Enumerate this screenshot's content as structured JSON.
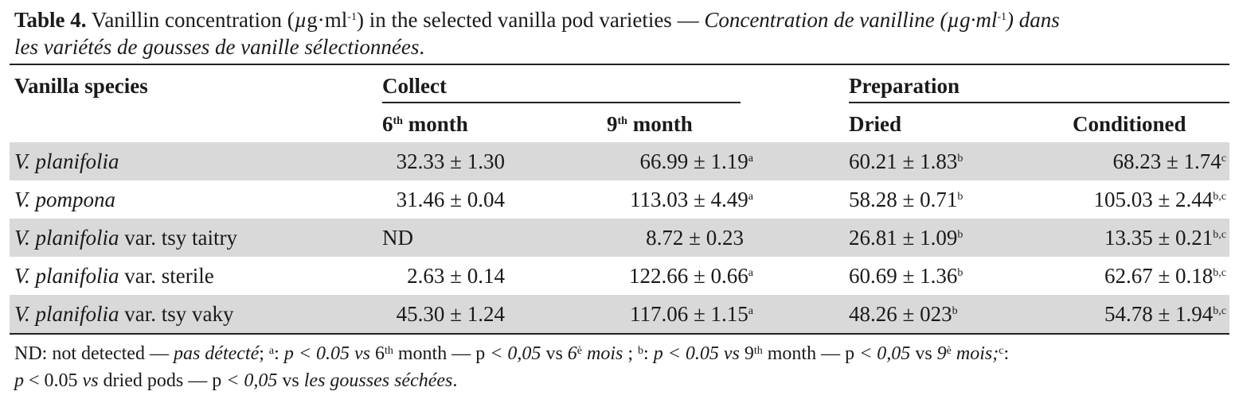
{
  "caption": {
    "label": "Table 4.",
    "text_en_1": " Vanillin concentration (",
    "unit_mu": "µ",
    "unit_rest": "g·ml",
    "unit_exp": "-1",
    "text_en_2": ") in the selected vanilla pod varieties — ",
    "text_fr_1": "Concentration de vanilline (",
    "unit_fr_mu": "µ",
    "unit_fr_rest": "g·ml",
    "unit_fr_exp": "-1",
    "text_fr_2": ") dans",
    "line2": "les variétés de gousses de vanille sélectionnées",
    "line2_end": "."
  },
  "headers": {
    "species": "Vanilla species",
    "collect": "Collect",
    "preparation": "Preparation",
    "m6_num": "6",
    "m6_sup": "th",
    "m6_text": " month",
    "m9_num": "9",
    "m9_sup": "th",
    "m9_text": " month",
    "dried": "Dried",
    "conditioned": "Conditioned"
  },
  "rows": [
    {
      "species_it": "V. planifolia",
      "species_rest": "",
      "m6": "32.33 ± 1.30",
      "m9": "66.99 ± 1.19",
      "m9_sup": "a",
      "dried": "60.21 ± 1.83",
      "dried_sup": "b",
      "cond": "68.23 ± 1.74",
      "cond_sup": "c"
    },
    {
      "species_it": "V. pompona",
      "species_rest": "",
      "m6": "31.46 ± 0.04",
      "m9": "113.03 ± 4.49",
      "m9_sup": "a",
      "dried": "58.28 ± 0.71",
      "dried_sup": "b",
      "cond": "105.03 ± 2.44",
      "cond_sup": "b,c"
    },
    {
      "species_it": "V. planifolia",
      "species_rest": " var. tsy taitry",
      "m6": "ND",
      "m9": "8.72 ± 0.23",
      "m9_sup": "",
      "dried": "26.81 ± 1.09",
      "dried_sup": "b",
      "cond": "13.35 ± 0.21",
      "cond_sup": "b,c"
    },
    {
      "species_it": "V. planifolia",
      "species_rest": " var. sterile",
      "m6": "2.63 ± 0.14",
      "m9": "122.66 ± 0.66",
      "m9_sup": "a",
      "dried": "60.69 ± 1.36",
      "dried_sup": "b",
      "cond": "62.67 ± 0.18",
      "cond_sup": "b,c"
    },
    {
      "species_it": "V. planifolia",
      "species_rest": " var. tsy vaky",
      "m6": "45.30 ± 1.24",
      "m9": "117.06 ± 1.15",
      "m9_sup": "a",
      "dried": "48.26 ± 023",
      "dried_sup": "b",
      "cond": "54.78 ± 1.94",
      "cond_sup": "b,c"
    }
  ],
  "notes": {
    "l1_a": "ND: not detected — ",
    "l1_b": "pas détecté",
    "l1_c": "; ",
    "l1_sa": "a",
    "l1_d": ": ",
    "l1_e": "p < 0.05 vs",
    "l1_f": " 6",
    "l1_fs": "th",
    "l1_g": " month — p ",
    "l1_h": "< 0,05",
    "l1_i": " vs ",
    "l1_j": "6",
    "l1_js": "è",
    "l1_k": " mois",
    "l1_l": " ; ",
    "l1_sb": "b",
    "l1_m": ": ",
    "l1_n": "p < 0.05 vs",
    "l1_o": " 9",
    "l1_os": "th",
    "l1_p": " month — p ",
    "l1_q": "< 0,05",
    "l1_r": " vs ",
    "l1_s": "9",
    "l1_ss": "è",
    "l1_t": " mois;",
    "l1_sc": "c",
    "l1_u": ":",
    "l2_a": "p",
    "l2_b": " < 0.05 ",
    "l2_c": "vs",
    "l2_d": " dried pods — p ",
    "l2_e": "< 0,05",
    "l2_f": " vs ",
    "l2_g": "les gousses séchées",
    "l2_h": "."
  }
}
